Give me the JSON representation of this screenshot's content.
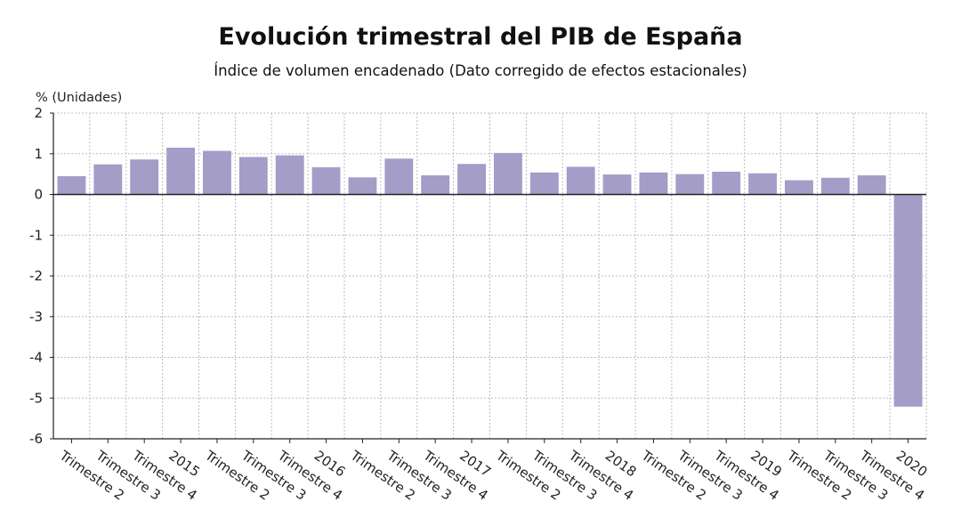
{
  "chart_data": {
    "type": "bar",
    "title": "Evolución trimestral del PIB de España",
    "subtitle": "Índice de volumen encadenado (Dato corregido de efectos estacionales)",
    "ylabel": "% (Unidades)",
    "xlabel": "",
    "ylim": [
      -6,
      2
    ],
    "yticks": [
      2,
      1,
      0,
      -1,
      -2,
      -3,
      -4,
      -5,
      -6
    ],
    "grid": true,
    "color": "#a39dc8",
    "categories": [
      "Trimestre 2",
      "Trimestre 3",
      "Trimestre 4",
      "2015",
      "Trimestre 2",
      "Trimestre 3",
      "Trimestre 4",
      "2016",
      "Trimestre 2",
      "Trimestre 3",
      "Trimestre 4",
      "2017",
      "Trimestre 2",
      "Trimestre 3",
      "Trimestre 4",
      "2018",
      "Trimestre 2",
      "Trimestre 3",
      "Trimestre 4",
      "2019",
      "Trimestre 2",
      "Trimestre 3",
      "Trimestre 4",
      "2020"
    ],
    "values": [
      0.45,
      0.74,
      0.86,
      1.15,
      1.07,
      0.92,
      0.96,
      0.67,
      0.42,
      0.88,
      0.47,
      0.75,
      1.02,
      0.54,
      0.68,
      0.49,
      0.54,
      0.5,
      0.56,
      0.52,
      0.35,
      0.41,
      0.47,
      -5.21
    ]
  }
}
